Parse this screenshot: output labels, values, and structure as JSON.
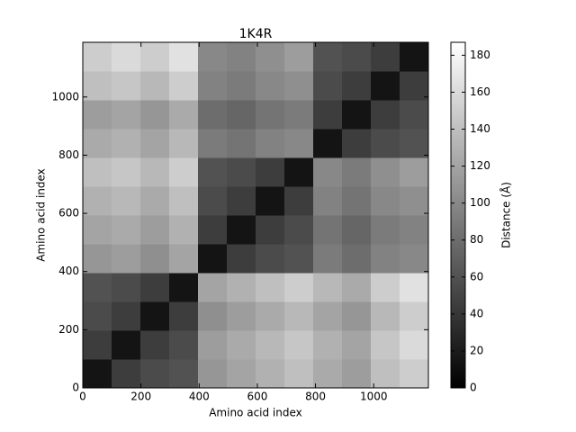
{
  "chart_data": {
    "type": "heatmap",
    "title": "1K4R",
    "x_label": "Amino acid index",
    "y_label": "Amino acid index",
    "colorbar_label": "Distance (Å)",
    "colormap": "gray",
    "xlim": [
      0,
      1188
    ],
    "ylim": [
      0,
      1188
    ],
    "xticks": [
      0,
      200,
      400,
      600,
      800,
      1000
    ],
    "yticks": [
      0,
      200,
      400,
      600,
      800,
      1000
    ],
    "clim": [
      0,
      187
    ],
    "cticks": [
      0,
      20,
      40,
      60,
      80,
      100,
      120,
      140,
      160,
      180
    ],
    "z": [
      [
        15,
        45,
        55,
        60,
        110,
        120,
        130,
        140,
        125,
        115,
        140,
        150
      ],
      [
        45,
        15,
        45,
        55,
        115,
        125,
        135,
        145,
        130,
        120,
        145,
        160
      ],
      [
        55,
        45,
        15,
        45,
        105,
        115,
        125,
        135,
        120,
        110,
        135,
        150
      ],
      [
        60,
        55,
        45,
        15,
        120,
        130,
        140,
        150,
        135,
        125,
        150,
        165
      ],
      [
        110,
        115,
        105,
        120,
        15,
        45,
        55,
        60,
        90,
        80,
        95,
        100
      ],
      [
        120,
        125,
        115,
        130,
        45,
        15,
        45,
        55,
        85,
        75,
        90,
        95
      ],
      [
        130,
        135,
        125,
        140,
        55,
        45,
        15,
        45,
        95,
        85,
        100,
        105
      ],
      [
        140,
        145,
        135,
        150,
        60,
        55,
        45,
        15,
        100,
        90,
        105,
        115
      ],
      [
        125,
        130,
        120,
        135,
        90,
        85,
        95,
        100,
        15,
        45,
        55,
        60
      ],
      [
        115,
        120,
        110,
        125,
        80,
        75,
        85,
        90,
        45,
        15,
        45,
        55
      ],
      [
        140,
        145,
        135,
        150,
        95,
        90,
        100,
        105,
        55,
        45,
        15,
        45
      ],
      [
        150,
        160,
        150,
        165,
        100,
        95,
        105,
        115,
        60,
        55,
        45,
        15
      ]
    ]
  }
}
